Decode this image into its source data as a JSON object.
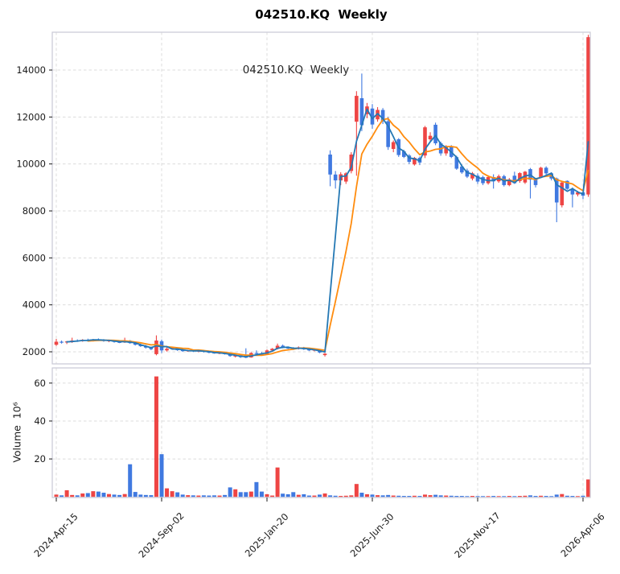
{
  "figure": {
    "title": "042510.KQ  Weekly",
    "inner_label": "042510.KQ  Weekly"
  },
  "chart_data": {
    "type": "candlestick",
    "subplots": [
      "price",
      "volume"
    ],
    "symbol": "042510.KQ",
    "frequency": "Weekly",
    "title": "042510.KQ  Weekly",
    "price_axis": {
      "ticks": [
        2000,
        4000,
        6000,
        8000,
        10000,
        12000,
        14000
      ],
      "range": [
        1486,
        15611
      ],
      "grid": true
    },
    "volume_axis": {
      "label": "Volume  10⁶",
      "ticks": [
        20,
        40,
        60
      ],
      "range": [
        0,
        68
      ],
      "unit": "millions",
      "grid": true
    },
    "x_axis": {
      "tick_labels": [
        "2024-Apr-15",
        "2024-Sep-02",
        "2025-Jan-20",
        "2025-Jun-30",
        "2025-Nov-17",
        "2026-Apr-06"
      ],
      "tick_indices": [
        0,
        20,
        40,
        60,
        80,
        100
      ],
      "label_rotation_deg": 45
    },
    "style": {
      "up_color": "#ee4544",
      "down_color": "#4079e0",
      "ma_short_color": "#2478b4",
      "ma_long_color": "#ff8c0e",
      "ma_short_window": 3,
      "ma_long_window": 7,
      "grid_color": "#dcdcdc",
      "spine_color": "#c9c9d6",
      "tick_color": "#1a1a1a"
    },
    "candles": {
      "columns": [
        "open",
        "high",
        "low",
        "close",
        "volume_millions"
      ],
      "rows": [
        [
          2300,
          2550,
          2250,
          2430,
          1.2
        ],
        [
          2430,
          2480,
          2350,
          2400,
          0.8
        ],
        [
          2400,
          2460,
          2330,
          2440,
          3.5
        ],
        [
          2440,
          2600,
          2380,
          2480,
          1.0
        ],
        [
          2480,
          2530,
          2420,
          2460,
          0.8
        ],
        [
          2460,
          2540,
          2430,
          2510,
          1.8
        ],
        [
          2510,
          2560,
          2450,
          2490,
          2.0
        ],
        [
          2490,
          2550,
          2440,
          2530,
          3.0
        ],
        [
          2530,
          2570,
          2460,
          2500,
          2.8
        ],
        [
          2500,
          2540,
          2430,
          2460,
          2.2
        ],
        [
          2460,
          2520,
          2410,
          2490,
          1.5
        ],
        [
          2490,
          2510,
          2390,
          2420,
          1.2
        ],
        [
          2420,
          2470,
          2370,
          2400,
          1.0
        ],
        [
          2400,
          2600,
          2380,
          2470,
          1.5
        ],
        [
          2470,
          2500,
          2340,
          2370,
          17.2
        ],
        [
          2370,
          2420,
          2270,
          2300,
          2.6
        ],
        [
          2300,
          2350,
          2210,
          2240,
          1.2
        ],
        [
          2240,
          2290,
          2140,
          2180,
          1.0
        ],
        [
          2180,
          2220,
          2070,
          2110,
          0.9
        ],
        [
          1900,
          2700,
          1850,
          2480,
          63.5
        ],
        [
          2450,
          2520,
          1950,
          2060,
          22.5
        ],
        [
          2060,
          2190,
          2010,
          2130,
          4.5
        ],
        [
          2130,
          2210,
          2090,
          2160,
          3.0
        ],
        [
          2160,
          2190,
          2040,
          2070,
          2.4
        ],
        [
          2070,
          2110,
          2000,
          2030,
          1.2
        ],
        [
          2030,
          2090,
          2000,
          2060,
          0.9
        ],
        [
          2060,
          2080,
          1990,
          2020,
          0.8
        ],
        [
          2020,
          2070,
          1980,
          2050,
          0.7
        ],
        [
          2050,
          2080,
          1970,
          2000,
          0.8
        ],
        [
          2000,
          2040,
          1940,
          1970,
          0.7
        ],
        [
          1970,
          2010,
          1920,
          1940,
          0.8
        ],
        [
          1940,
          1990,
          1900,
          1960,
          0.7
        ],
        [
          1960,
          1980,
          1880,
          1900,
          1.0
        ],
        [
          1900,
          1930,
          1790,
          1820,
          5.0
        ],
        [
          1800,
          1870,
          1760,
          1850,
          4.0
        ],
        [
          1850,
          1880,
          1740,
          1770,
          2.5
        ],
        [
          1790,
          2150,
          1730,
          1760,
          2.5
        ],
        [
          1760,
          1980,
          1750,
          1950,
          2.8
        ],
        [
          1950,
          2060,
          1880,
          1910,
          7.8
        ],
        [
          1910,
          1990,
          1860,
          1890,
          2.8
        ],
        [
          1890,
          2100,
          1870,
          2060,
          1.4
        ],
        [
          2060,
          2160,
          2030,
          2130,
          0.7
        ],
        [
          2130,
          2350,
          2100,
          2260,
          15.5
        ],
        [
          2260,
          2310,
          2150,
          2180,
          1.7
        ],
        [
          2180,
          2230,
          2120,
          2150,
          1.4
        ],
        [
          2150,
          2200,
          2080,
          2120,
          2.5
        ],
        [
          2120,
          2230,
          2100,
          2190,
          1.1
        ],
        [
          2190,
          2210,
          2080,
          2110,
          1.4
        ],
        [
          2110,
          2160,
          2030,
          2060,
          0.7
        ],
        [
          2060,
          2120,
          2020,
          2090,
          0.7
        ],
        [
          2090,
          2110,
          1940,
          1970,
          1.2
        ],
        [
          1860,
          1950,
          1800,
          1920,
          1.8
        ],
        [
          10400,
          10580,
          9050,
          9550,
          0.8
        ],
        [
          9550,
          9700,
          8950,
          9300,
          0.6
        ],
        [
          9300,
          9650,
          9100,
          9560,
          0.5
        ],
        [
          9250,
          9650,
          9150,
          9600,
          0.6
        ],
        [
          9700,
          10500,
          9600,
          10400,
          0.8
        ],
        [
          11800,
          13100,
          9500,
          12900,
          6.8
        ],
        [
          12800,
          13850,
          11400,
          11650,
          2.2
        ],
        [
          12120,
          12600,
          11950,
          12450,
          1.4
        ],
        [
          12360,
          12550,
          11500,
          11680,
          1.2
        ],
        [
          11900,
          12420,
          11800,
          12300,
          0.9
        ],
        [
          12300,
          12380,
          11700,
          11820,
          0.8
        ],
        [
          11820,
          12000,
          10600,
          10720,
          1.0
        ],
        [
          10640,
          11000,
          10500,
          10930,
          0.7
        ],
        [
          11050,
          11100,
          10300,
          10380,
          0.6
        ],
        [
          10540,
          10600,
          10250,
          10300,
          0.5
        ],
        [
          10360,
          10420,
          10000,
          10090,
          0.5
        ],
        [
          9980,
          10300,
          9930,
          10260,
          0.6
        ],
        [
          10260,
          10320,
          9950,
          10060,
          0.5
        ],
        [
          10360,
          11620,
          10250,
          11560,
          1.2
        ],
        [
          11050,
          11350,
          10950,
          11200,
          0.9
        ],
        [
          11670,
          11760,
          10800,
          10880,
          1.1
        ],
        [
          10880,
          10950,
          10350,
          10450,
          0.8
        ],
        [
          10450,
          10800,
          10350,
          10760,
          0.7
        ],
        [
          10760,
          10800,
          10250,
          10300,
          0.6
        ],
        [
          10290,
          10350,
          9750,
          9800,
          0.5
        ],
        [
          9890,
          9980,
          9580,
          9640,
          0.5
        ],
        [
          9720,
          9800,
          9400,
          9460,
          0.4
        ],
        [
          9380,
          9660,
          9300,
          9600,
          0.5
        ],
        [
          9500,
          9600,
          9150,
          9250,
          0.4
        ],
        [
          9440,
          9500,
          9100,
          9180,
          0.4
        ],
        [
          9180,
          9520,
          9120,
          9440,
          0.4
        ],
        [
          9440,
          9560,
          8950,
          9260,
          0.5
        ],
        [
          9260,
          9550,
          9200,
          9480,
          0.4
        ],
        [
          9480,
          9540,
          9040,
          9100,
          0.4
        ],
        [
          9100,
          9400,
          9050,
          9340,
          0.5
        ],
        [
          9500,
          9670,
          9150,
          9180,
          0.4
        ],
        [
          9270,
          9650,
          9200,
          9610,
          0.5
        ],
        [
          9210,
          9700,
          9150,
          9670,
          0.6
        ],
        [
          9780,
          9830,
          8530,
          9330,
          0.8
        ],
        [
          9330,
          9400,
          9000,
          9100,
          0.5
        ],
        [
          9440,
          9880,
          9400,
          9840,
          0.6
        ],
        [
          9840,
          9900,
          9500,
          9600,
          0.5
        ],
        [
          9600,
          9650,
          9300,
          9380,
          0.4
        ],
        [
          9380,
          9420,
          7520,
          8360,
          1.2
        ],
        [
          8240,
          9250,
          8150,
          9210,
          1.5
        ],
        [
          9280,
          9300,
          8900,
          8940,
          0.6
        ],
        [
          8940,
          9000,
          8150,
          8700,
          0.5
        ],
        [
          8700,
          8850,
          8620,
          8790,
          0.4
        ],
        [
          8790,
          8850,
          8500,
          8650,
          0.6
        ],
        [
          8700,
          15500,
          8600,
          15400,
          9.2
        ]
      ]
    }
  }
}
